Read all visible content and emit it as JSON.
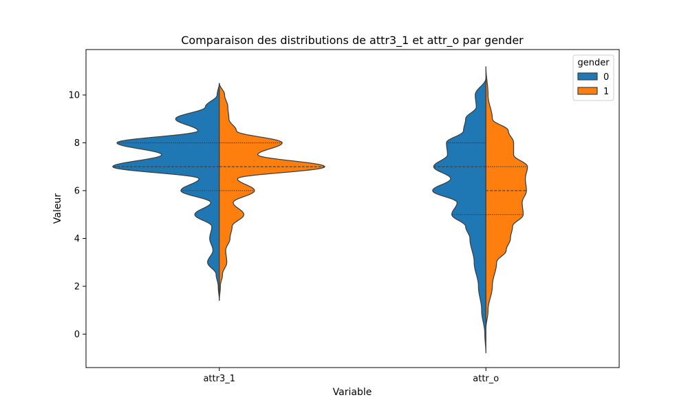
{
  "chart_data": {
    "type": "violin",
    "title": "Comparaison des distributions de attr3_1 et attr_o par gender",
    "xlabel": "Variable",
    "ylabel": "Valeur",
    "ylim": [
      -1.4,
      11.9
    ],
    "yticks": [
      "0",
      "2",
      "4",
      "6",
      "8",
      "10"
    ],
    "categories": [
      "attr3_1",
      "attr_o"
    ],
    "split": true,
    "legend": {
      "title": "gender",
      "placement": "top-right",
      "entries": [
        {
          "label": "0",
          "color": "#1f77b4"
        },
        {
          "label": "1",
          "color": "#ff7f0e"
        }
      ]
    },
    "violins": [
      {
        "category": "attr3_1",
        "side_0": {
          "range": [
            1.4,
            10.5
          ],
          "profile": [
            [
              1.4,
              0.0
            ],
            [
              2.0,
              0.01
            ],
            [
              2.5,
              0.03
            ],
            [
              3.0,
              0.11
            ],
            [
              3.5,
              0.06
            ],
            [
              4.0,
              0.09
            ],
            [
              4.5,
              0.07
            ],
            [
              5.0,
              0.23
            ],
            [
              5.5,
              0.08
            ],
            [
              6.0,
              0.36
            ],
            [
              6.5,
              0.19
            ],
            [
              7.0,
              1.0
            ],
            [
              7.5,
              0.54
            ],
            [
              8.0,
              0.96
            ],
            [
              8.5,
              0.2
            ],
            [
              9.0,
              0.41
            ],
            [
              9.5,
              0.13
            ],
            [
              10.0,
              0.02
            ],
            [
              10.5,
              0.0
            ]
          ],
          "quartiles": [
            6.0,
            7.0,
            8.0
          ]
        },
        "side_1": {
          "range": [
            1.4,
            10.5
          ],
          "profile": [
            [
              1.4,
              0.0
            ],
            [
              2.0,
              0.01
            ],
            [
              2.5,
              0.03
            ],
            [
              3.0,
              0.07
            ],
            [
              3.5,
              0.06
            ],
            [
              4.0,
              0.1
            ],
            [
              4.5,
              0.12
            ],
            [
              5.0,
              0.23
            ],
            [
              5.5,
              0.13
            ],
            [
              6.0,
              0.33
            ],
            [
              6.5,
              0.17
            ],
            [
              7.0,
              0.99
            ],
            [
              7.5,
              0.36
            ],
            [
              8.0,
              0.59
            ],
            [
              8.5,
              0.16
            ],
            [
              9.0,
              0.09
            ],
            [
              9.5,
              0.08
            ],
            [
              10.0,
              0.05
            ],
            [
              10.5,
              0.0
            ]
          ],
          "quartiles": [
            6.0,
            7.0,
            8.0
          ]
        }
      },
      {
        "category": "attr_o",
        "side_0": {
          "range": [
            -0.8,
            10.7
          ],
          "profile": [
            [
              -0.8,
              0.0
            ],
            [
              0.0,
              0.01
            ],
            [
              1.0,
              0.04
            ],
            [
              2.0,
              0.07
            ],
            [
              3.0,
              0.11
            ],
            [
              4.0,
              0.15
            ],
            [
              4.5,
              0.19
            ],
            [
              5.0,
              0.32
            ],
            [
              5.5,
              0.27
            ],
            [
              6.0,
              0.5
            ],
            [
              6.5,
              0.33
            ],
            [
              7.0,
              0.49
            ],
            [
              7.5,
              0.36
            ],
            [
              8.0,
              0.37
            ],
            [
              8.5,
              0.21
            ],
            [
              9.0,
              0.19
            ],
            [
              9.5,
              0.09
            ],
            [
              10.0,
              0.1
            ],
            [
              10.7,
              0.0
            ]
          ],
          "quartiles": [
            5.0,
            7.0,
            8.0
          ]
        },
        "side_1": {
          "range": [
            0.2,
            11.2
          ],
          "profile": [
            [
              0.2,
              0.0
            ],
            [
              1.0,
              0.02
            ],
            [
              2.0,
              0.06
            ],
            [
              3.0,
              0.1
            ],
            [
              3.5,
              0.19
            ],
            [
              4.0,
              0.23
            ],
            [
              4.5,
              0.25
            ],
            [
              5.0,
              0.35
            ],
            [
              5.5,
              0.34
            ],
            [
              6.0,
              0.38
            ],
            [
              6.5,
              0.37
            ],
            [
              7.0,
              0.39
            ],
            [
              7.5,
              0.26
            ],
            [
              8.0,
              0.26
            ],
            [
              8.5,
              0.21
            ],
            [
              9.0,
              0.06
            ],
            [
              10.0,
              0.02
            ],
            [
              11.2,
              0.0
            ]
          ],
          "quartiles": [
            5.0,
            6.0,
            7.0
          ]
        }
      }
    ]
  }
}
